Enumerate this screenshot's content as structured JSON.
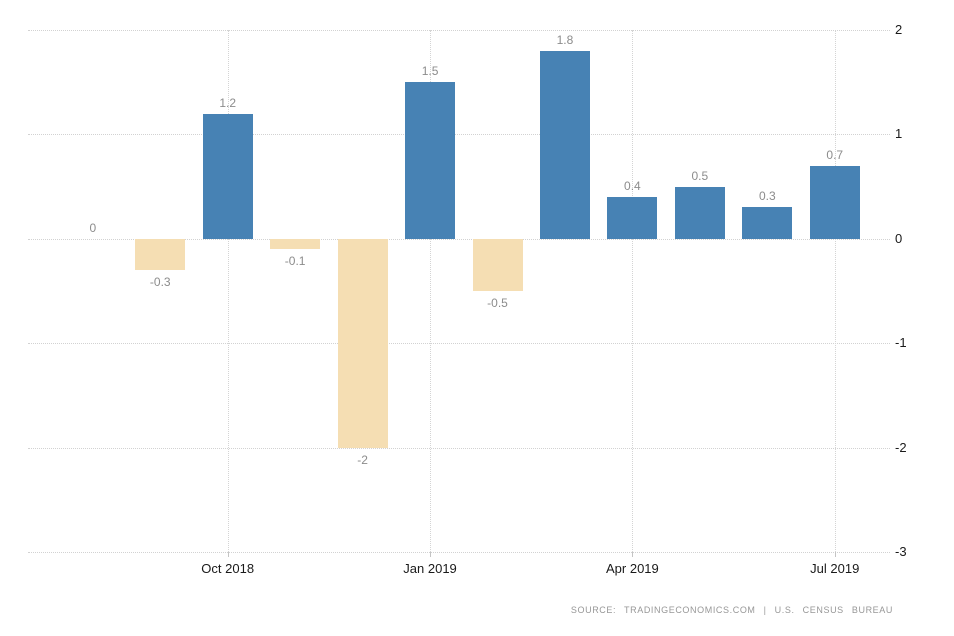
{
  "chart_data": {
    "type": "bar",
    "title": "",
    "xlabel": "",
    "ylabel": "",
    "values": [
      0,
      -0.3,
      1.2,
      -0.1,
      -2,
      1.5,
      -0.5,
      1.8,
      0.4,
      0.5,
      0.3,
      0.7
    ],
    "bar_labels": [
      "0",
      "-0.3",
      "1.2",
      "-0.1",
      "-2",
      "1.5",
      "-0.5",
      "1.8",
      "0.4",
      "0.5",
      "0.3",
      "0.7"
    ],
    "x_ticks": [
      {
        "label": "Oct 2018",
        "bar_index": 2
      },
      {
        "label": "Jan 2019",
        "bar_index": 5
      },
      {
        "label": "Apr 2019",
        "bar_index": 8
      },
      {
        "label": "Jul 2019",
        "bar_index": 11
      }
    ],
    "y_ticks": [
      "2",
      "1",
      "0",
      "-1",
      "-2",
      "-3"
    ],
    "ylim": [
      -3,
      2
    ],
    "y_axis_side": "right",
    "grid": "dotted",
    "legend_position": "none",
    "colors": {
      "positive_bar": "#4782b4",
      "negative_bar": "#f5deb3",
      "grid": "#d2d2d2",
      "value_label": "#8c8c8c",
      "axis_label": "#1a1a1a",
      "background": "#ffffff"
    }
  },
  "footer": {
    "source": "SOURCE: TRADINGECONOMICS.COM | U.S. CENSUS BUREAU"
  }
}
